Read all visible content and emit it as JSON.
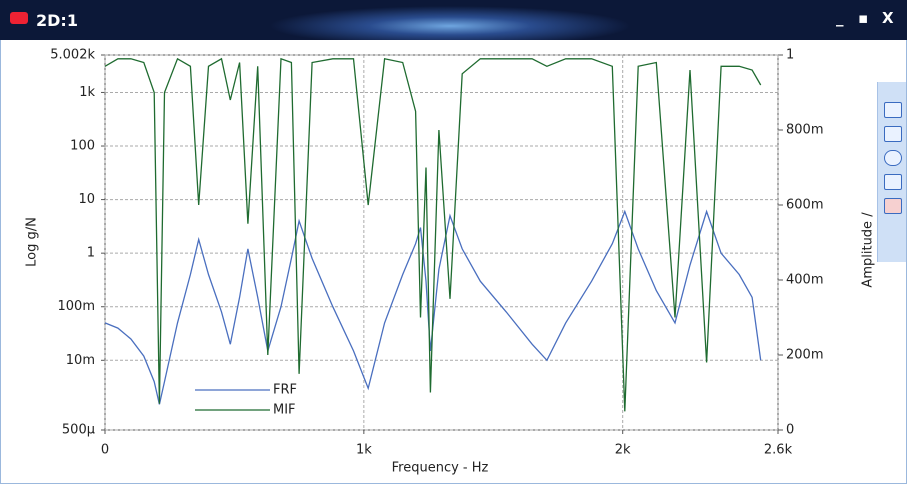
{
  "window": {
    "title": "2D:1"
  },
  "chart_data": {
    "type": "line",
    "ylabel": "Log g/N",
    "xlabel": "Frequency - Hz",
    "y2label": "Amplitude /",
    "ylog": true,
    "grid": true,
    "legend": "lower left",
    "xlim": [
      0,
      2600
    ],
    "xticks": [
      0,
      {
        "value": 1000,
        "label": "1k"
      },
      {
        "value": 2000,
        "label": "2k"
      },
      {
        "value": 2600,
        "label": "2.6k"
      }
    ],
    "ylim": [
      0.0005,
      5002
    ],
    "yticks": [
      {
        "value": 5002,
        "label": "5.002k"
      },
      {
        "value": 1000,
        "label": "1k"
      },
      100,
      10,
      1,
      {
        "value": 0.1,
        "label": "100m"
      },
      {
        "value": 0.01,
        "label": "10m"
      },
      {
        "value": 0.0005,
        "label": "500µ"
      }
    ],
    "y2lim": [
      0,
      1
    ],
    "y2ticks": [
      0,
      {
        "value": 0.2,
        "label": "200m"
      },
      {
        "value": 0.4,
        "label": "400m"
      },
      {
        "value": 0.6,
        "label": "600m"
      },
      {
        "value": 0.8,
        "label": "800m"
      },
      1
    ],
    "x": [
      0,
      50,
      100,
      150,
      190,
      210,
      230,
      280,
      330,
      362,
      400,
      450,
      484,
      520,
      552,
      590,
      629,
      680,
      720,
      750,
      800,
      880,
      960,
      1017,
      1080,
      1150,
      1200,
      1219,
      1240,
      1257,
      1290,
      1333,
      1380,
      1450,
      1550,
      1650,
      1707,
      1780,
      1880,
      1960,
      2008,
      2060,
      2130,
      2202,
      2260,
      2324,
      2380,
      2450,
      2500,
      2533
    ],
    "series": [
      {
        "name": "FRF",
        "color": "#4a6fbf",
        "values": [
          0.05,
          0.04,
          0.025,
          0.012,
          0.004,
          0.0015,
          0.004,
          0.05,
          0.4,
          1.8,
          0.4,
          0.08,
          0.02,
          0.15,
          1.2,
          0.15,
          0.015,
          0.1,
          0.8,
          4,
          0.8,
          0.1,
          0.015,
          0.003,
          0.05,
          0.4,
          1.5,
          3,
          0.3,
          0.015,
          0.5,
          5,
          1.2,
          0.3,
          0.08,
          0.02,
          0.01,
          0.05,
          0.3,
          1.5,
          6,
          1.2,
          0.2,
          0.05,
          0.6,
          6,
          1.0,
          0.4,
          0.15,
          0.01
        ]
      },
      {
        "name": "MIF",
        "color": "#1f6b30",
        "axis": "y2",
        "values": [
          0.97,
          0.99,
          0.99,
          0.98,
          0.9,
          0.07,
          0.9,
          0.99,
          0.97,
          0.6,
          0.97,
          0.99,
          0.88,
          0.98,
          0.55,
          0.97,
          0.2,
          0.99,
          0.98,
          0.15,
          0.98,
          0.99,
          0.99,
          0.6,
          0.99,
          0.98,
          0.85,
          0.3,
          0.7,
          0.1,
          0.8,
          0.35,
          0.95,
          0.99,
          0.99,
          0.99,
          0.97,
          0.99,
          0.99,
          0.97,
          0.05,
          0.97,
          0.98,
          0.3,
          0.96,
          0.18,
          0.97,
          0.97,
          0.96,
          0.92
        ]
      }
    ]
  }
}
